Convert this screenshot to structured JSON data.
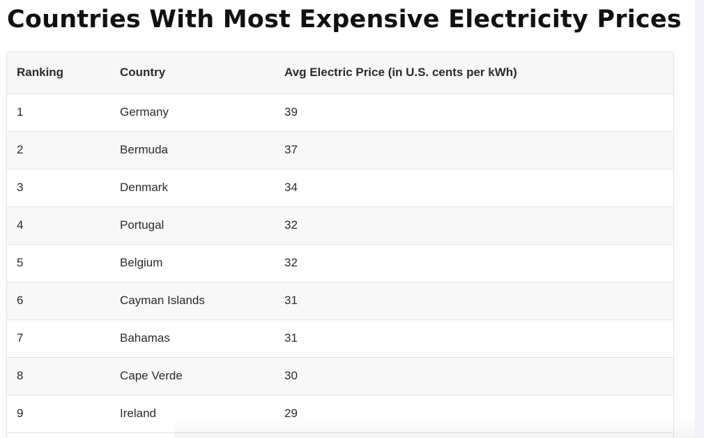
{
  "page": {
    "title": "Countries With Most Expensive Electricity Prices"
  },
  "table": {
    "headers": {
      "ranking": "Ranking",
      "country": "Country",
      "price": "Avg Electric Price (in U.S. cents per kWh)"
    },
    "rows": [
      {
        "ranking": "1",
        "country": "Germany",
        "price": "39"
      },
      {
        "ranking": "2",
        "country": "Bermuda",
        "price": "37"
      },
      {
        "ranking": "3",
        "country": "Denmark",
        "price": "34"
      },
      {
        "ranking": "4",
        "country": "Portugal",
        "price": "32"
      },
      {
        "ranking": "5",
        "country": "Belgium",
        "price": "32"
      },
      {
        "ranking": "6",
        "country": "Cayman Islands",
        "price": "31"
      },
      {
        "ranking": "7",
        "country": "Bahamas",
        "price": "31"
      },
      {
        "ranking": "8",
        "country": "Cape Verde",
        "price": "30"
      },
      {
        "ranking": "9",
        "country": "Ireland",
        "price": "29"
      }
    ]
  }
}
